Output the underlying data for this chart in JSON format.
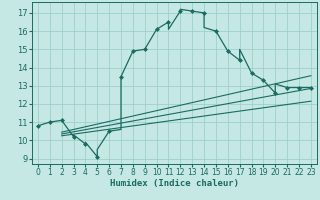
{
  "title": "",
  "xlabel": "Humidex (Indice chaleur)",
  "xlim": [
    -0.5,
    23.5
  ],
  "ylim": [
    8.7,
    17.6
  ],
  "xticks": [
    0,
    1,
    2,
    3,
    4,
    5,
    6,
    7,
    8,
    9,
    10,
    11,
    12,
    13,
    14,
    15,
    16,
    17,
    18,
    19,
    20,
    21,
    22,
    23
  ],
  "yticks": [
    9,
    10,
    11,
    12,
    13,
    14,
    15,
    16,
    17
  ],
  "background_color": "#c5e8e5",
  "grid_color": "#9ecfcc",
  "line_color": "#1a6b60",
  "main_x": [
    0,
    1,
    2,
    3,
    3,
    4,
    4,
    5,
    5,
    6,
    7,
    7,
    8,
    9,
    10,
    11,
    11,
    12,
    12,
    13,
    14,
    14,
    15,
    16,
    17,
    17,
    18,
    19,
    20,
    20,
    21,
    22,
    23
  ],
  "main_y": [
    10.8,
    11.0,
    11.1,
    10.2,
    10.3,
    9.8,
    9.9,
    9.1,
    9.5,
    10.5,
    10.6,
    13.5,
    14.9,
    15.0,
    16.1,
    16.5,
    16.1,
    17.1,
    17.2,
    17.1,
    17.0,
    16.2,
    16.0,
    14.9,
    14.4,
    15.0,
    13.7,
    13.3,
    12.6,
    13.1,
    12.9,
    12.9,
    12.9
  ],
  "marker_x": [
    0,
    1,
    2,
    3,
    4,
    5,
    6,
    7,
    8,
    9,
    10,
    11,
    12,
    13,
    14,
    15,
    16,
    17,
    18,
    19,
    20,
    21,
    22,
    23
  ],
  "marker_y": [
    10.8,
    11.0,
    11.1,
    10.2,
    9.8,
    9.1,
    10.5,
    13.5,
    14.9,
    15.0,
    16.1,
    16.5,
    17.1,
    17.1,
    17.0,
    16.0,
    14.9,
    14.4,
    13.7,
    13.3,
    12.6,
    12.9,
    12.9,
    12.9
  ],
  "reg_lines": [
    {
      "x": [
        2,
        23
      ],
      "y": [
        10.45,
        13.55
      ]
    },
    {
      "x": [
        2,
        23
      ],
      "y": [
        10.35,
        12.85
      ]
    },
    {
      "x": [
        2,
        23
      ],
      "y": [
        10.25,
        12.15
      ]
    }
  ]
}
